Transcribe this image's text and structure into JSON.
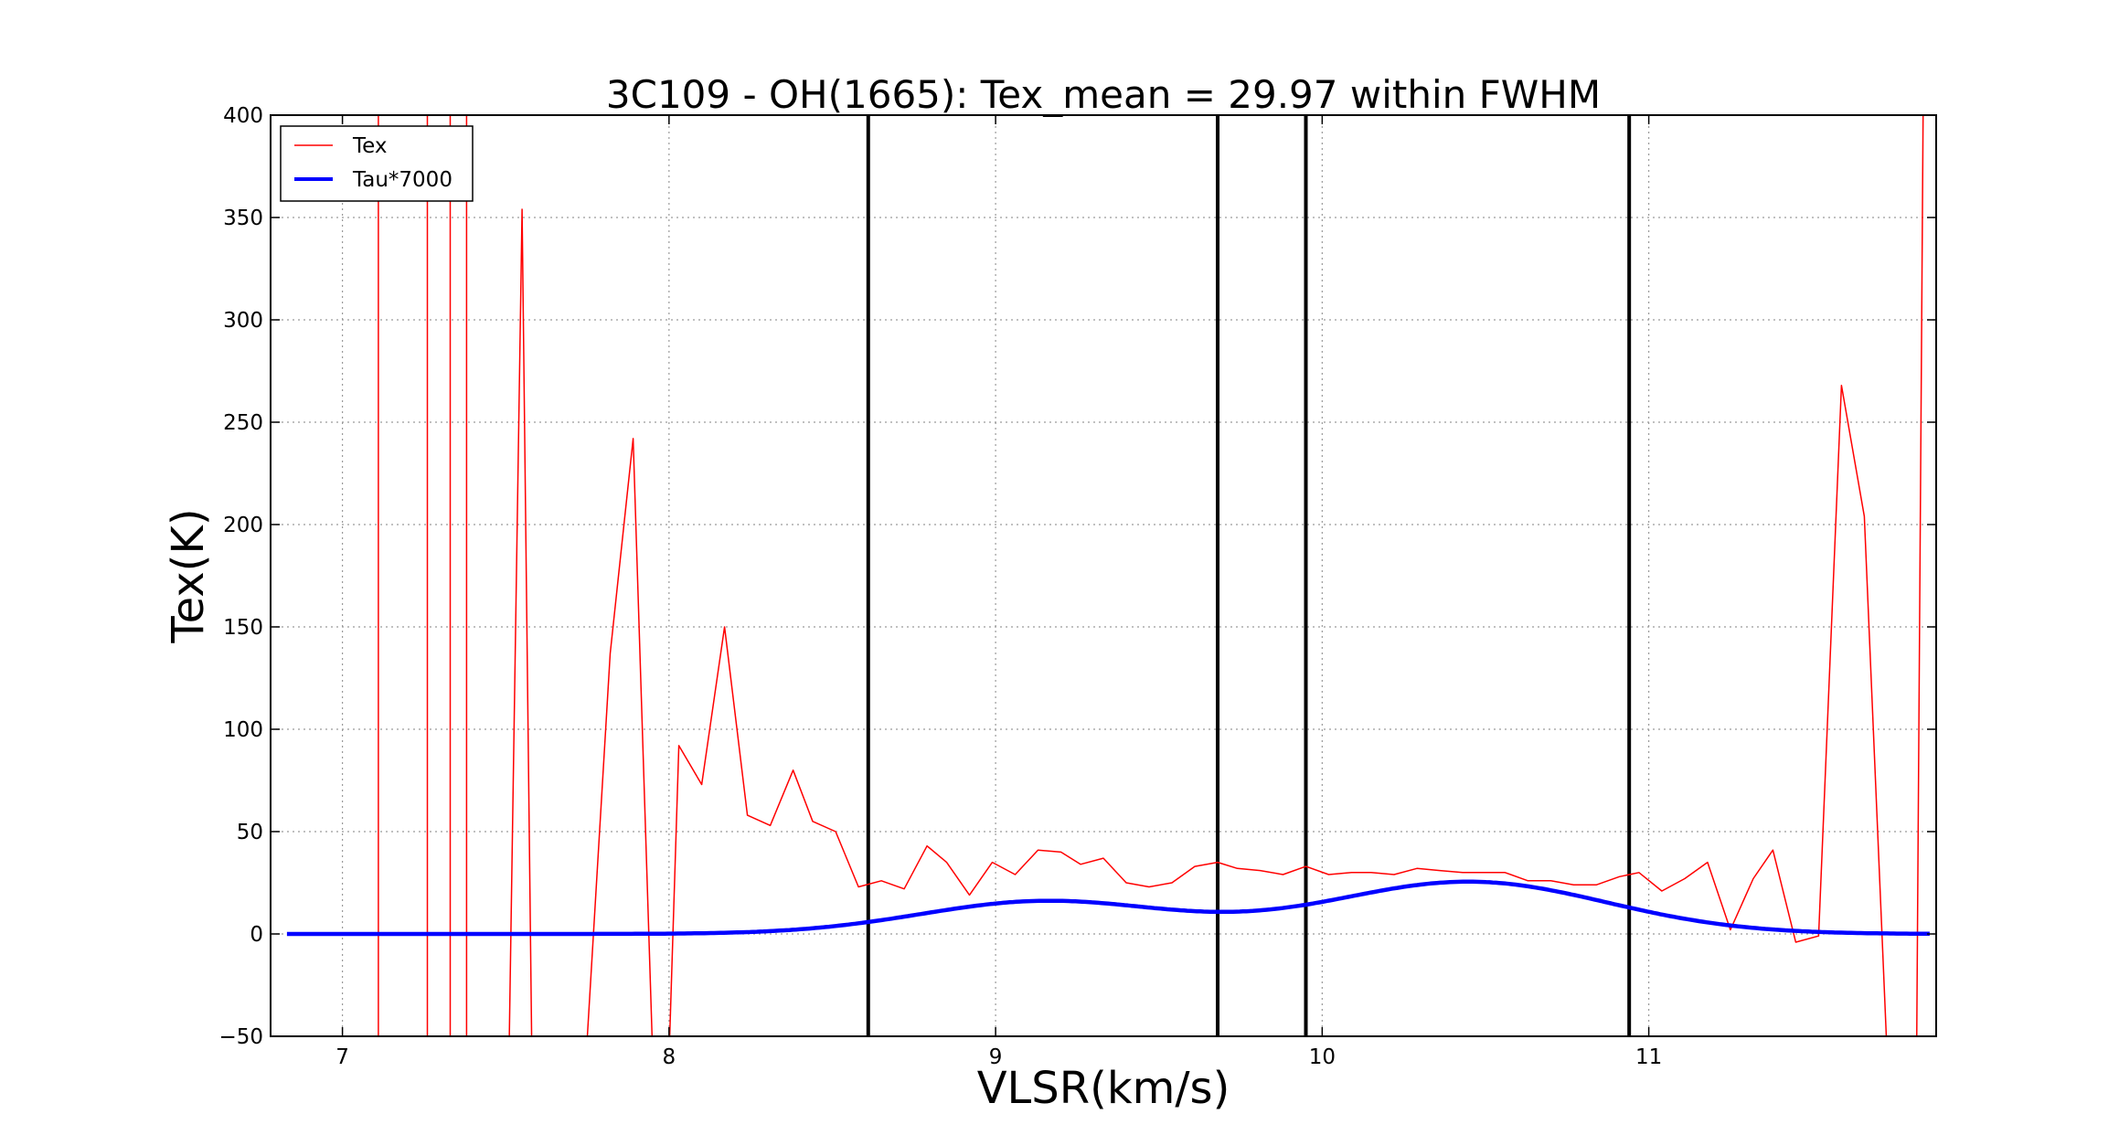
{
  "chart_data": {
    "type": "line",
    "title": "3C109 - OH(1665): Tex_mean = 29.97 within FWHM",
    "xlabel": "VLSR(km/s)",
    "ylabel": "Tex(K)",
    "xlim": [
      6.78,
      11.88
    ],
    "ylim": [
      -50,
      400
    ],
    "xticks": [
      7,
      8,
      9,
      10,
      11
    ],
    "xtick_labels": [
      "7",
      "8",
      "9",
      "10",
      "11"
    ],
    "yticks": [
      -50,
      0,
      50,
      100,
      150,
      200,
      250,
      300,
      350,
      400
    ],
    "ytick_labels": [
      "−50",
      "0",
      "50",
      "100",
      "150",
      "200",
      "250",
      "300",
      "350",
      "400"
    ],
    "grid": true,
    "legend": {
      "placement": "top-left",
      "entries": [
        "Tex",
        "Tau*7000"
      ]
    },
    "vlines": [
      8.61,
      9.68,
      9.95,
      10.94
    ],
    "series": [
      {
        "name": "Tex",
        "color": "#ff0000",
        "style": "thin",
        "x": [
          6.93,
          6.93,
          7.11,
          7.11,
          7.26,
          7.26,
          7.33,
          7.33,
          7.38,
          7.38,
          7.51,
          7.55,
          7.58,
          7.58,
          7.75,
          7.75,
          7.82,
          7.89,
          7.95,
          7.95,
          8.0,
          8.03,
          8.1,
          8.17,
          8.24,
          8.31,
          8.38,
          8.44,
          8.51,
          8.58,
          8.65,
          8.72,
          8.79,
          8.85,
          8.92,
          8.99,
          9.06,
          9.13,
          9.2,
          9.26,
          9.33,
          9.4,
          9.47,
          9.54,
          9.61,
          9.68,
          9.74,
          9.81,
          9.88,
          9.95,
          10.02,
          10.09,
          10.15,
          10.22,
          10.29,
          10.36,
          10.43,
          10.5,
          10.56,
          10.63,
          10.7,
          10.77,
          10.84,
          10.91,
          10.97,
          11.04,
          11.11,
          11.18,
          11.25,
          11.32,
          11.38,
          11.45,
          11.52,
          11.59,
          11.66,
          11.73,
          11.73,
          11.82,
          11.82,
          11.84,
          11.84
        ],
        "values": [
          -50,
          -60,
          -60,
          400,
          400,
          -60,
          -60,
          400,
          400,
          -60,
          -60,
          354,
          -60,
          -60,
          -60,
          -50,
          137,
          242,
          -60,
          -60,
          -60,
          92,
          73,
          150,
          58,
          53,
          80,
          55,
          50,
          23,
          26,
          22,
          43,
          35,
          19,
          35,
          29,
          41,
          40,
          34,
          37,
          25,
          23,
          25,
          33,
          35,
          32,
          31,
          29,
          33,
          29,
          30,
          30,
          29,
          32,
          31,
          30,
          30,
          30,
          26,
          26,
          24,
          24,
          28,
          30,
          21,
          27,
          35,
          2,
          27,
          41,
          -4,
          -1,
          268,
          204,
          -60,
          -60,
          -60,
          -60,
          400,
          400
        ]
      },
      {
        "name": "Tau*7000",
        "color": "#0000ff",
        "style": "thick",
        "components": [
          {
            "amplitude": 16.0,
            "center": 9.15,
            "width_sigma": 0.38
          },
          {
            "amplitude": 25.5,
            "center": 10.45,
            "width_sigma": 0.42
          }
        ],
        "x_range": [
          6.83,
          11.86
        ]
      }
    ]
  }
}
